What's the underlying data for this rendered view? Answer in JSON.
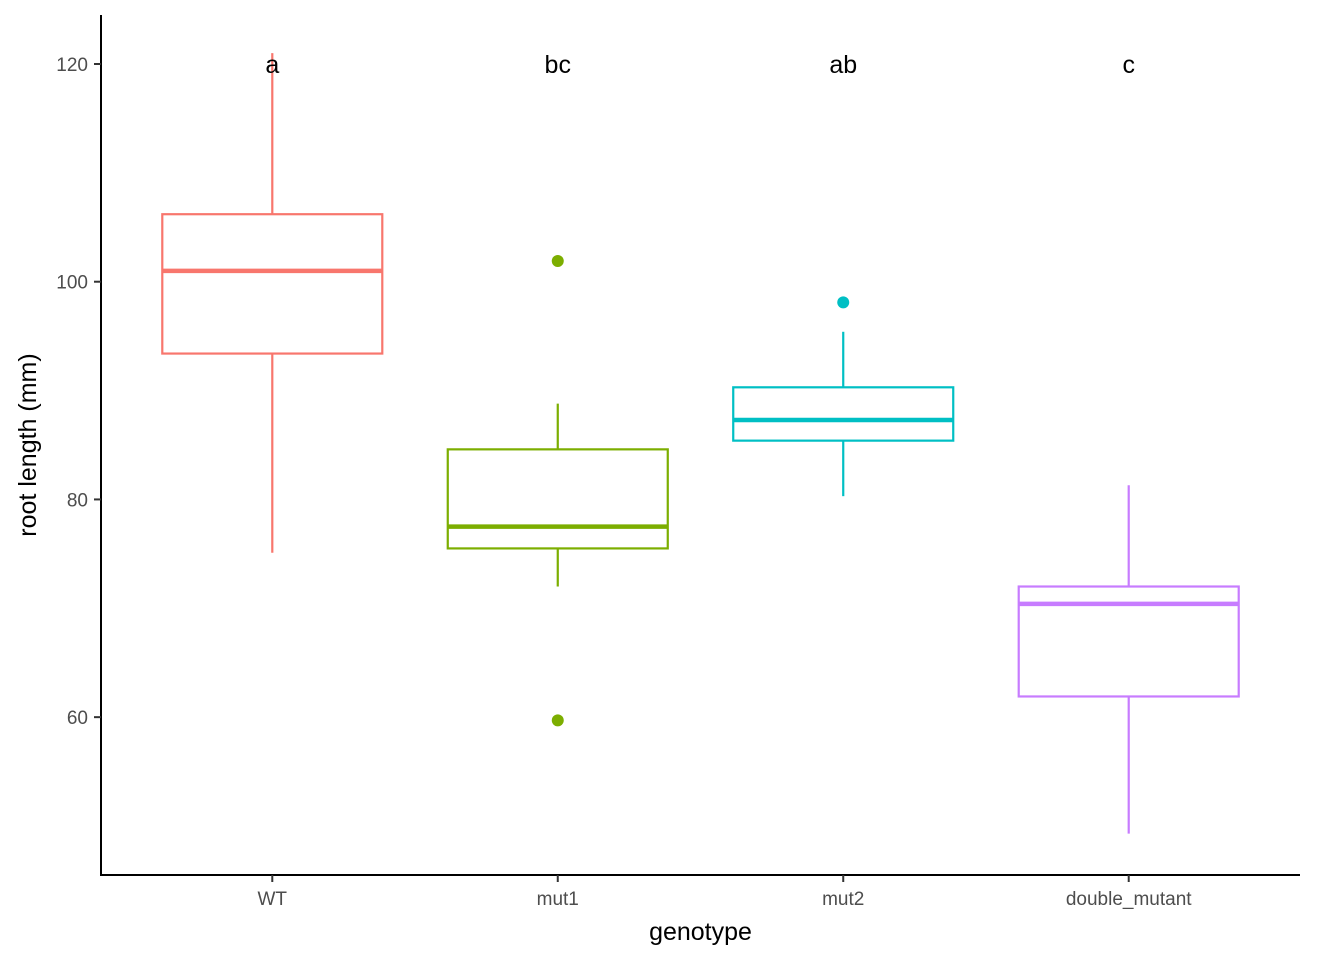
{
  "chart_data": {
    "type": "boxplot",
    "xlabel": "genotype",
    "ylabel": "root length (mm)",
    "ylim": [
      45.5,
      124.5
    ],
    "yticks": [
      60,
      80,
      100,
      120
    ],
    "grid": false,
    "legend": "none",
    "categories": [
      "WT",
      "mut1",
      "mut2",
      "double_mutant"
    ],
    "boxes": [
      {
        "category": "WT",
        "color": "#F8766D",
        "whisker_low": 75.1,
        "q1": 93.4,
        "median": 101.0,
        "q3": 106.2,
        "whisker_high": 121.0,
        "outliers": [],
        "letter": "a"
      },
      {
        "category": "mut1",
        "color": "#7CAE00",
        "whisker_low": 72.0,
        "q1": 75.5,
        "median": 77.5,
        "q3": 84.6,
        "whisker_high": 88.8,
        "outliers": [
          101.9,
          59.7
        ],
        "letter": "bc"
      },
      {
        "category": "mut2",
        "color": "#00BFC4",
        "whisker_low": 80.3,
        "q1": 85.4,
        "median": 87.3,
        "q3": 90.3,
        "whisker_high": 95.4,
        "outliers": [
          98.1
        ],
        "letter": "ab"
      },
      {
        "category": "double_mutant",
        "color": "#C77CFF",
        "whisker_low": 49.3,
        "q1": 61.9,
        "median": 70.4,
        "q3": 72.0,
        "whisker_high": 81.3,
        "outliers": [],
        "letter": "c"
      }
    ],
    "letter_y": 120
  }
}
